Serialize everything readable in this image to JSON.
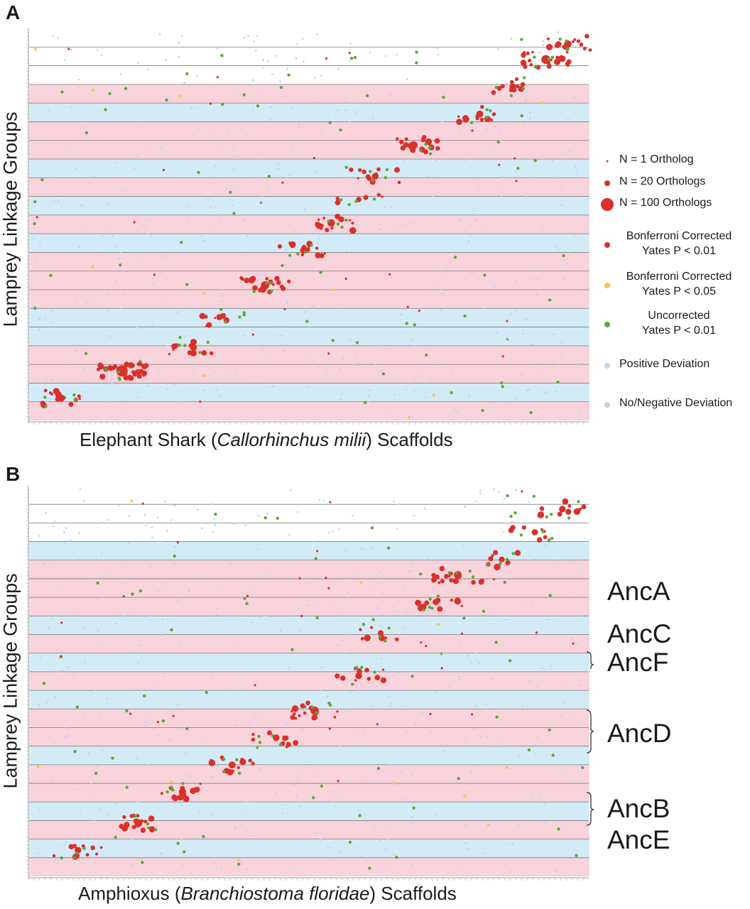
{
  "panels": [
    {
      "letter": "A",
      "ylabel": "Lamprey Linkage Groups",
      "xlabel_pre": "Elephant Shark (",
      "xlabel_ital": "Callorhinchus milii",
      "xlabel_post": ") Scaffolds"
    },
    {
      "letter": "B",
      "ylabel": "Lamprey Linkage Groups",
      "xlabel_pre": "Amphioxus (",
      "xlabel_ital": "Branchiostoma floridae",
      "xlabel_post": ") Scaffolds"
    }
  ],
  "legend": {
    "items": [
      {
        "label": "N = 1 Ortholog",
        "symbol": "size-1",
        "color": "#d9302a"
      },
      {
        "label": "N = 20 Orthologs",
        "symbol": "size-20",
        "color": "#d9302a"
      },
      {
        "label": "N = 100 Orthologs",
        "symbol": "size-100",
        "color": "#d9302a"
      },
      {
        "label": "Bonferroni Corrected\nYates P < 0.01",
        "symbol": "dot",
        "color": "#d9302a"
      },
      {
        "label": "Bonferroni Corrected\nYates P < 0.05",
        "symbol": "dot",
        "color": "#f5c842"
      },
      {
        "label": "Uncorrected\nYates P < 0.01",
        "symbol": "dot",
        "color": "#5aa83a"
      },
      {
        "label": "Positive Deviation",
        "symbol": "dot",
        "color": "#b8d8f2"
      },
      {
        "label": "No/Negative Deviation",
        "symbol": "dot",
        "color": "#d0d0d0"
      }
    ]
  },
  "ancestral_labels": [
    "AncA",
    "AncC",
    "AncF",
    "AncD",
    "AncB",
    "AncE"
  ],
  "colors": {
    "pink_band": "#f8d3dc",
    "blue_band": "#d3ebf7",
    "significant": "#d9302a",
    "bonferroni_005": "#f5c842",
    "uncorrected": "#5aa83a",
    "positive": "#b8d8f2",
    "negative": "#d0d0d0",
    "row_line": "#7a7a7a"
  },
  "chart_data": [
    {
      "type": "scatter",
      "title": "",
      "xlabel": "Elephant Shark (Callorhinchus milii) Scaffolds",
      "ylabel": "Lamprey Linkage Groups",
      "note": "Oxford-grid dot plot; x = scaffold index, y = linkage-group index; dot size = ortholog count",
      "band_pattern": [
        "white",
        "white",
        "white",
        "pink",
        "blue",
        "pink",
        "pink",
        "blue",
        "pink",
        "blue",
        "pink",
        "blue",
        "pink",
        "pink",
        "pink",
        "blue",
        "blue",
        "pink",
        "pink",
        "blue",
        "pink"
      ],
      "diagonal_clusters": [
        {
          "x": 0.98,
          "y": 0.04,
          "n": 40
        },
        {
          "x": 0.94,
          "y": 0.08,
          "n": 60
        },
        {
          "x": 0.88,
          "y": 0.15,
          "n": 30
        },
        {
          "x": 0.82,
          "y": 0.22,
          "n": 35
        },
        {
          "x": 0.7,
          "y": 0.3,
          "n": 45
        },
        {
          "x": 0.63,
          "y": 0.38,
          "n": 30
        },
        {
          "x": 0.6,
          "y": 0.44,
          "n": 15
        },
        {
          "x": 0.55,
          "y": 0.5,
          "n": 40
        },
        {
          "x": 0.5,
          "y": 0.57,
          "n": 35
        },
        {
          "x": 0.43,
          "y": 0.66,
          "n": 50
        },
        {
          "x": 0.36,
          "y": 0.75,
          "n": 20
        },
        {
          "x": 0.3,
          "y": 0.82,
          "n": 30
        },
        {
          "x": 0.17,
          "y": 0.88,
          "n": 100
        },
        {
          "x": 0.06,
          "y": 0.95,
          "n": 35
        }
      ]
    },
    {
      "type": "scatter",
      "title": "",
      "xlabel": "Amphioxus (Branchiostoma floridae) Scaffolds",
      "ylabel": "Lamprey Linkage Groups",
      "note": "Oxford-grid dot plot; x = scaffold index, y = linkage-group index; dot size = ortholog count",
      "band_pattern": [
        "white",
        "white",
        "white",
        "blue",
        "pink",
        "pink",
        "pink",
        "blue",
        "pink",
        "blue",
        "pink",
        "blue",
        "pink",
        "pink",
        "blue",
        "pink",
        "pink",
        "blue",
        "pink",
        "blue",
        "pink"
      ],
      "diagonal_clusters": [
        {
          "x": 0.97,
          "y": 0.06,
          "n": 30
        },
        {
          "x": 0.92,
          "y": 0.12,
          "n": 25
        },
        {
          "x": 0.86,
          "y": 0.19,
          "n": 20
        },
        {
          "x": 0.78,
          "y": 0.23,
          "n": 45
        },
        {
          "x": 0.74,
          "y": 0.3,
          "n": 25
        },
        {
          "x": 0.64,
          "y": 0.38,
          "n": 20
        },
        {
          "x": 0.6,
          "y": 0.49,
          "n": 30
        },
        {
          "x": 0.52,
          "y": 0.58,
          "n": 50
        },
        {
          "x": 0.45,
          "y": 0.65,
          "n": 30
        },
        {
          "x": 0.37,
          "y": 0.72,
          "n": 35
        },
        {
          "x": 0.28,
          "y": 0.79,
          "n": 40
        },
        {
          "x": 0.2,
          "y": 0.87,
          "n": 45
        },
        {
          "x": 0.09,
          "y": 0.94,
          "n": 30
        }
      ]
    }
  ]
}
